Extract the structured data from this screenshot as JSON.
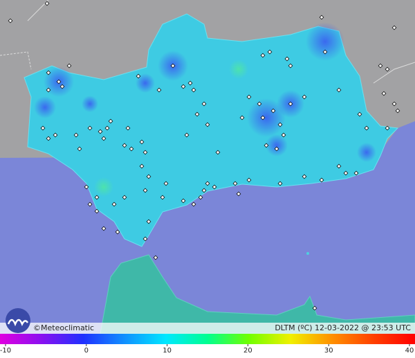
{
  "map": {
    "credit": "©Meteoclimatic",
    "caption": "DLTM (ºC) 12-03-2022 @ 23:53 UTC",
    "colorbar": {
      "ticks": [
        -10,
        0,
        10,
        20,
        30,
        40
      ],
      "range": [
        -10,
        40
      ]
    }
  }
}
